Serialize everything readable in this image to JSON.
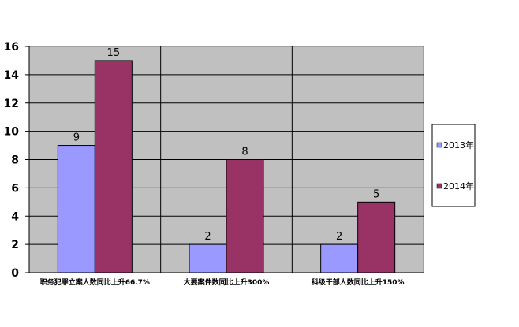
{
  "chart_data": {
    "type": "bar",
    "categories": [
      "职务犯罪立案人数同比上升66.7%",
      "大要案件数同比上升300%",
      "科级干部人数同比上升150%"
    ],
    "series": [
      {
        "name": "2013年",
        "values": [
          9,
          2,
          2
        ],
        "color": "#9999ff"
      },
      {
        "name": "2014年",
        "values": [
          15,
          8,
          5
        ],
        "color": "#993366"
      }
    ],
    "y_ticks": [
      0,
      2,
      4,
      6,
      8,
      10,
      12,
      14,
      16
    ],
    "ylim": [
      0,
      16
    ],
    "grid": true,
    "plot_background": "#c0c0c0",
    "legend_position": "right",
    "data_labels": true
  }
}
